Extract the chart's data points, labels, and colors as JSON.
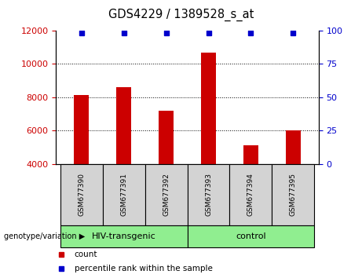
{
  "title": "GDS4229 / 1389528_s_at",
  "samples": [
    "GSM677390",
    "GSM677391",
    "GSM677392",
    "GSM677393",
    "GSM677394",
    "GSM677395"
  ],
  "counts": [
    8150,
    8600,
    7200,
    10700,
    5100,
    6000
  ],
  "percentile_ranks": [
    100,
    100,
    100,
    100,
    100,
    100
  ],
  "bar_color": "#cc0000",
  "dot_color": "#0000cc",
  "ylim_left": [
    4000,
    12000
  ],
  "ylim_right": [
    0,
    100
  ],
  "yticks_left": [
    4000,
    6000,
    8000,
    10000,
    12000
  ],
  "yticks_right": [
    0,
    25,
    50,
    75,
    100
  ],
  "grid_ticks": [
    6000,
    8000,
    10000
  ],
  "group_boundaries": [
    [
      0,
      2,
      "HIV-transgenic"
    ],
    [
      3,
      5,
      "control"
    ]
  ],
  "group_label_prefix": "genotype/variation",
  "legend_count_label": "count",
  "legend_pct_label": "percentile rank within the sample",
  "left_tick_color": "#cc0000",
  "right_tick_color": "#0000cc",
  "bg_sample_row": "#d3d3d3",
  "bg_group_row": "#90ee90",
  "figsize": [
    4.61,
    3.54
  ],
  "dpi": 100
}
